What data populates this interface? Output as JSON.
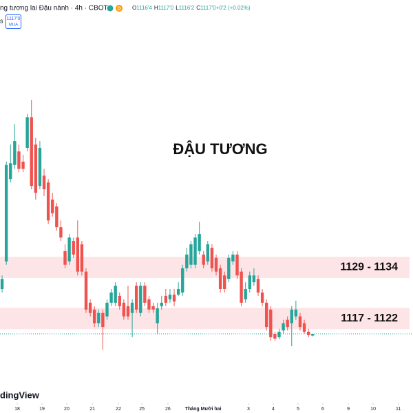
{
  "header": {
    "symbol": "ng tương lai Đậu nành · 4h · CBOT",
    "badge": "D",
    "ohlc": [
      {
        "label": "O",
        "value": "1116'4"
      },
      {
        "label": "H",
        "value": "1117'0"
      },
      {
        "label": "L",
        "value": "1116'2"
      },
      {
        "label": "C",
        "value": "1117'0"
      },
      {
        "label": "",
        "value": "+0'2 (+0.02%)"
      }
    ],
    "cut_text": "s",
    "price_box": "1117'0",
    "action": "MUA"
  },
  "watermark": "dingView",
  "chart_data": {
    "type": "candlestick",
    "title": "ĐẬU TƯƠNG",
    "up_color": "#26a69a",
    "down_color": "#ef5350",
    "x": [
      0,
      1,
      2,
      3,
      4,
      5,
      6,
      7,
      8,
      9,
      10,
      11,
      12,
      13,
      14,
      15,
      16,
      17,
      18,
      19,
      20,
      21,
      22,
      23,
      24,
      25,
      26,
      27,
      28,
      29,
      30,
      31,
      32,
      33,
      34,
      35,
      36,
      37,
      38,
      39,
      40,
      41,
      42,
      43,
      44,
      45,
      46,
      47,
      48,
      49,
      50,
      51,
      52,
      53,
      54,
      55,
      56,
      57,
      58,
      59,
      60,
      61,
      62,
      63,
      64,
      65,
      66,
      67,
      68,
      69,
      70,
      71,
      72,
      73,
      74
    ],
    "open": [
      1126.4,
      1132.9,
      1152.2,
      1155.5,
      1158.7,
      1156.3,
      1159.5,
      1166.7,
      1160.3,
      1150.6,
      1153.0,
      1151.4,
      1147.4,
      1145.8,
      1140.9,
      1135.3,
      1132.9,
      1137.7,
      1138.5,
      1136.9,
      1130.5,
      1123.2,
      1121.6,
      1118.4,
      1120.8,
      1120.0,
      1123.2,
      1123.2,
      1124.8,
      1123.2,
      1122.4,
      1120.8,
      1127.2,
      1120.8,
      1127.2,
      1124.0,
      1122.4,
      1118.4,
      1122.4,
      1124.8,
      1124.0,
      1125.1,
      1125.1,
      1125.6,
      1131.3,
      1132.1,
      1132.1,
      1135.3,
      1134.5,
      1132.9,
      1136.1,
      1133.7,
      1131.3,
      1129.6,
      1128.8,
      1132.9,
      1134.5,
      1130.5,
      1124.0,
      1126.4,
      1128.0,
      1128.8,
      1125.6,
      1123.2,
      1121.6,
      1115.9,
      1115.1,
      1116.7,
      1119.2,
      1118.4,
      1120.0,
      1120.0,
      1118.4,
      1116.4,
      1115.5
    ],
    "high": [
      1129.6,
      1156.3,
      1160.3,
      1165.1,
      1160.3,
      1157.9,
      1167.5,
      1170.8,
      1161.9,
      1161.1,
      1154.6,
      1152.2,
      1149.0,
      1146.6,
      1142.5,
      1136.9,
      1139.3,
      1138.5,
      1142.5,
      1137.7,
      1131.3,
      1124.0,
      1122.4,
      1121.6,
      1121.6,
      1124.0,
      1126.4,
      1128.0,
      1125.6,
      1124.0,
      1127.2,
      1124.0,
      1128.0,
      1128.0,
      1128.0,
      1124.8,
      1123.2,
      1123.2,
      1124.8,
      1126.4,
      1126.4,
      1126.4,
      1128.0,
      1132.1,
      1136.1,
      1137.7,
      1139.3,
      1142.2,
      1135.3,
      1137.7,
      1136.9,
      1134.5,
      1132.1,
      1130.5,
      1134.5,
      1135.3,
      1135.3,
      1131.3,
      1128.0,
      1130.5,
      1131.3,
      1129.6,
      1126.4,
      1124.0,
      1122.4,
      1116.4,
      1117.1,
      1119.2,
      1120.0,
      1122.4,
      1123.7,
      1120.8,
      1119.2,
      1117.1,
      1115.9
    ],
    "low": [
      1125.6,
      1132.1,
      1151.4,
      1154.6,
      1153.8,
      1153.8,
      1158.7,
      1149.8,
      1147.4,
      1149.8,
      1148.2,
      1141.7,
      1143.4,
      1140.1,
      1137.7,
      1131.3,
      1132.1,
      1133.7,
      1129.6,
      1129.6,
      1120.8,
      1120.0,
      1117.5,
      1117.5,
      1112.2,
      1119.2,
      1122.4,
      1122.4,
      1121.6,
      1119.2,
      1119.2,
      1115.1,
      1120.8,
      1120.0,
      1122.4,
      1120.8,
      1120.8,
      1115.9,
      1121.6,
      1122.4,
      1123.2,
      1122.4,
      1124.8,
      1124.8,
      1130.5,
      1131.3,
      1131.3,
      1134.5,
      1131.3,
      1132.1,
      1130.5,
      1129.6,
      1125.6,
      1125.6,
      1128.0,
      1132.1,
      1128.8,
      1122.4,
      1123.2,
      1125.6,
      1127.2,
      1124.8,
      1122.4,
      1116.7,
      1114.3,
      1114.3,
      1114.6,
      1115.9,
      1116.7,
      1113.0,
      1119.2,
      1116.7,
      1115.9,
      1115.1,
      1115.3
    ],
    "close": [
      1128.8,
      1155.5,
      1155.9,
      1161.1,
      1154.6,
      1154.6,
      1166.7,
      1150.6,
      1149.0,
      1159.5,
      1149.8,
      1142.5,
      1144.2,
      1140.9,
      1138.5,
      1132.1,
      1138.5,
      1134.5,
      1130.5,
      1130.5,
      1121.6,
      1120.8,
      1118.4,
      1120.8,
      1117.5,
      1123.2,
      1125.6,
      1127.2,
      1122.4,
      1120.0,
      1120.0,
      1123.2,
      1121.6,
      1127.2,
      1123.2,
      1121.6,
      1121.6,
      1121.9,
      1123.2,
      1123.2,
      1125.1,
      1123.5,
      1126.4,
      1131.3,
      1134.5,
      1136.9,
      1138.5,
      1139.3,
      1132.1,
      1136.9,
      1131.3,
      1130.5,
      1126.4,
      1126.4,
      1133.7,
      1134.5,
      1129.6,
      1123.2,
      1126.4,
      1129.6,
      1129.6,
      1125.6,
      1123.2,
      1117.5,
      1115.1,
      1114.8,
      1116.4,
      1118.4,
      1117.5,
      1121.6,
      1121.6,
      1117.5,
      1116.4,
      1115.6,
      1115.9
    ],
    "xlim": [
      -0.5,
      97.9
    ],
    "ylim": [
      1103.8,
      1194.2
    ],
    "xticks": [
      {
        "value": 3.6,
        "label": "18"
      },
      {
        "value": 9.5,
        "label": "19"
      },
      {
        "value": 15.4,
        "label": "20"
      },
      {
        "value": 21.5,
        "label": "21"
      },
      {
        "value": 27.7,
        "label": "22"
      },
      {
        "value": 33.3,
        "label": "25"
      },
      {
        "value": 39.5,
        "label": "26"
      },
      {
        "value": 47.9,
        "label": "Tháng Mười hai"
      },
      {
        "value": 58.7,
        "label": "3"
      },
      {
        "value": 64.6,
        "label": "4"
      },
      {
        "value": 70.5,
        "label": "5"
      },
      {
        "value": 76.4,
        "label": "6"
      },
      {
        "value": 82.5,
        "label": "9"
      },
      {
        "value": 88.4,
        "label": "10"
      },
      {
        "value": 94.4,
        "label": "11"
      }
    ],
    "zone_color": "#fde4e6",
    "zones": [
      {
        "label": "1129 - 1134",
        "from": 1129,
        "to": 1134
      },
      {
        "label": "1117 - 1122",
        "from": 1117,
        "to": 1122
      }
    ]
  }
}
